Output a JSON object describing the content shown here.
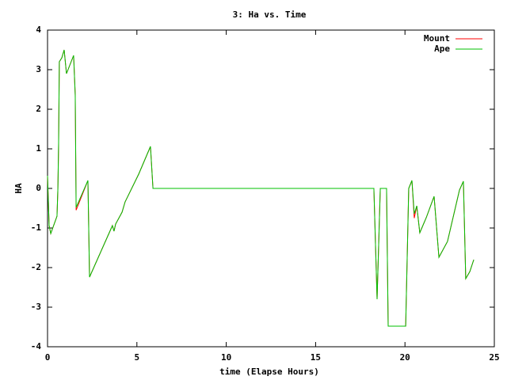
{
  "chart_data": {
    "type": "line",
    "title": "3: Ha vs. Time",
    "x_label": "time (Elapse Hours)",
    "y_label": "HA",
    "x": [
      0,
      0.09,
      0.18,
      0.53,
      0.58,
      0.62,
      0.66,
      0.8,
      0.93,
      1.06,
      1.46,
      1.55,
      1.6,
      2.26,
      2.35,
      3.63,
      3.72,
      3.81,
      4.17,
      4.34,
      5.1,
      5.76,
      5.9,
      18.26,
      18.44,
      18.62,
      18.97,
      19.06,
      20.04,
      20.21,
      20.39,
      20.52,
      20.66,
      20.83,
      21.19,
      21.63,
      21.9,
      22.38,
      23.05,
      23.27,
      23.4,
      23.63,
      23.85
    ],
    "series": [
      {
        "name": "Mount",
        "color": "#ff0000",
        "values": [
          0.32,
          -0.94,
          -1.14,
          -0.7,
          0,
          1.1,
          3.2,
          3.3,
          3.5,
          2.9,
          3.36,
          2.36,
          -0.55,
          0.2,
          -2.24,
          -0.94,
          -1.08,
          -0.9,
          -0.6,
          -0.34,
          0.36,
          1.06,
          0,
          0,
          -2.8,
          0,
          0,
          -3.48,
          -3.48,
          0,
          0.2,
          -0.75,
          -0.44,
          -1.12,
          -0.74,
          -0.2,
          -1.74,
          -1.34,
          -0.04,
          0.18,
          -2.28,
          -2.1,
          -1.8
        ]
      },
      {
        "name": "Ape",
        "color": "#00c000",
        "values": [
          0.32,
          -0.94,
          -1.14,
          -0.7,
          0,
          1.16,
          3.2,
          3.3,
          3.5,
          2.9,
          3.36,
          2.36,
          -0.48,
          0.2,
          -2.24,
          -0.94,
          -1.08,
          -0.9,
          -0.6,
          -0.34,
          0.36,
          1.06,
          0,
          0,
          -2.8,
          0,
          0,
          -3.48,
          -3.48,
          0,
          0.2,
          -0.64,
          -0.44,
          -1.12,
          -0.74,
          -0.2,
          -1.74,
          -1.34,
          -0.04,
          0.18,
          -2.28,
          -2.1,
          -1.8
        ]
      }
    ],
    "xlim": [
      0,
      25
    ],
    "xticks": [
      0,
      5,
      10,
      15,
      20,
      25
    ],
    "ylim": [
      -4,
      4
    ],
    "yticks": [
      -4,
      -3,
      -2,
      -1,
      0,
      1,
      2,
      3,
      4
    ],
    "legend": "top-right"
  }
}
